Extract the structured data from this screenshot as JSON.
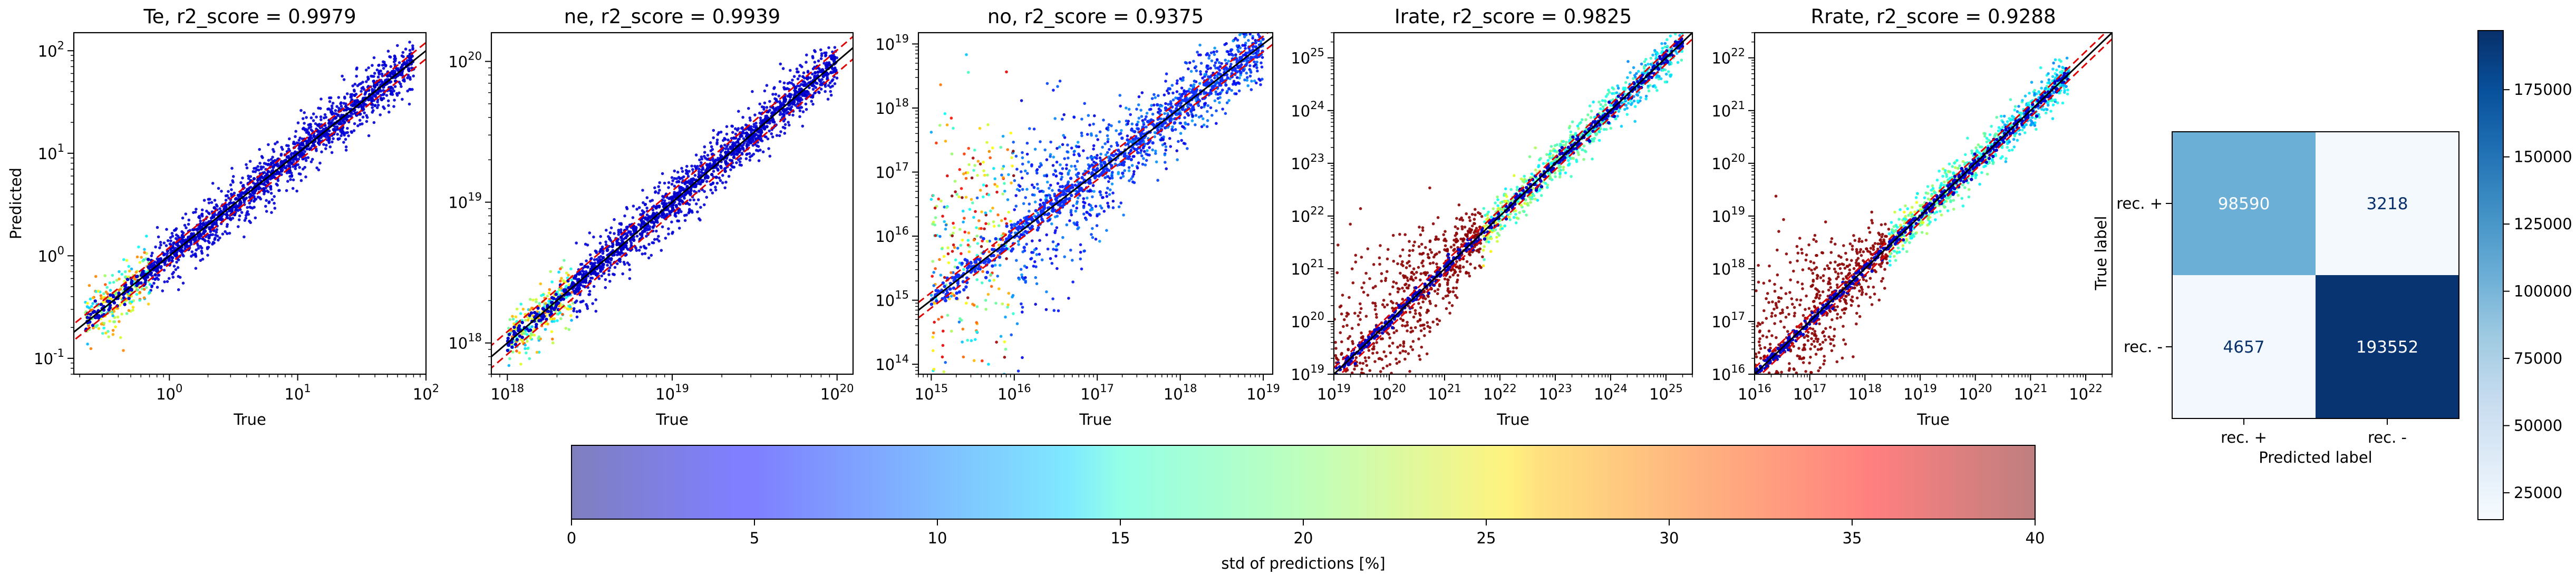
{
  "figure": {
    "bg": "#ffffff"
  },
  "chart_data": [
    {
      "type": "scatter",
      "id": "te",
      "title": "Te, r2_score = 0.9979",
      "xlabel": "True",
      "ylabel": "Predicted",
      "xscale": "log",
      "yscale": "log",
      "xlim": [
        0.18,
        100
      ],
      "ylim": [
        0.07,
        150
      ],
      "xticks": [
        {
          "exp": "0"
        },
        {
          "exp": "1"
        },
        {
          "exp": "2"
        }
      ],
      "yticks": [
        {
          "exp": "-1"
        },
        {
          "exp": "0"
        },
        {
          "exp": "1"
        },
        {
          "exp": "2"
        }
      ],
      "data_range": [
        0.22,
        80
      ],
      "diag_band": 0.14,
      "spread": 0.3,
      "outliers": 0.0,
      "color": "#0000d8"
    },
    {
      "type": "scatter",
      "id": "ne",
      "title": "ne, r2_score = 0.9939",
      "xlabel": "True",
      "ylabel": "",
      "xscale": "log",
      "yscale": "log",
      "xlim": [
        8e+17,
        1.25e+20
      ],
      "ylim": [
        6e+17,
        1.6e+20
      ],
      "xticks": [
        {
          "exp": "18"
        },
        {
          "exp": "19"
        },
        {
          "exp": "20"
        }
      ],
      "yticks": [
        {
          "exp": "18"
        },
        {
          "exp": "19"
        },
        {
          "exp": "20"
        }
      ],
      "data_range": [
        1e+18,
        1e+20
      ],
      "diag_band": 0.1,
      "spread": 0.2,
      "outliers": 0.0,
      "color": "#0000d8"
    },
    {
      "type": "scatter",
      "id": "no",
      "title": "no, r2_score = 0.9375",
      "xlabel": "True",
      "ylabel": "",
      "xscale": "log",
      "yscale": "log",
      "xlim": [
        700000000000000.0,
        1.3e+19
      ],
      "ylim": [
        70000000000000.0,
        1.5e+19
      ],
      "xticks": [
        {
          "exp": "15"
        },
        {
          "exp": "16"
        },
        {
          "exp": "17"
        },
        {
          "exp": "18"
        },
        {
          "exp": "19"
        }
      ],
      "yticks": [
        {
          "exp": "14"
        },
        {
          "exp": "15"
        },
        {
          "exp": "16"
        },
        {
          "exp": "17"
        },
        {
          "exp": "18"
        },
        {
          "exp": "19"
        }
      ],
      "data_range": [
        1000000000000000.0,
        1e+19
      ],
      "diag_band": 0.3,
      "spread": 1.2,
      "outliers": 0.0,
      "color": "#1030ff"
    },
    {
      "type": "scatter",
      "id": "irate",
      "title": "Irate, r2_score = 0.9825",
      "xlabel": "True",
      "ylabel": "",
      "xscale": "log",
      "yscale": "log",
      "xlim": [
        1e+19,
        3e+25
      ],
      "ylim": [
        1e+19,
        3e+25
      ],
      "xticks": [
        {
          "exp": "19"
        },
        {
          "exp": "20"
        },
        {
          "exp": "21"
        },
        {
          "exp": "22"
        },
        {
          "exp": "23"
        },
        {
          "exp": "24"
        },
        {
          "exp": "25"
        }
      ],
      "yticks": [
        {
          "exp": "19"
        },
        {
          "exp": "20"
        },
        {
          "exp": "21"
        },
        {
          "exp": "22"
        },
        {
          "exp": "23"
        },
        {
          "exp": "24"
        },
        {
          "exp": "25"
        }
      ],
      "data_range": [
        1e+19,
        2e+25
      ],
      "diag_band": 0.2,
      "spread": 0.9,
      "outliers": 0.0,
      "color": "#8b0000"
    },
    {
      "type": "scatter",
      "id": "rrate",
      "title": "Rrate, r2_score = 0.9288",
      "xlabel": "True",
      "ylabel": "",
      "xscale": "log",
      "yscale": "log",
      "xlim": [
        1e+16,
        3e+22
      ],
      "ylim": [
        1e+16,
        3e+22
      ],
      "xticks": [
        {
          "exp": "16"
        },
        {
          "exp": "17"
        },
        {
          "exp": "18"
        },
        {
          "exp": "19"
        },
        {
          "exp": "20"
        },
        {
          "exp": "21"
        },
        {
          "exp": "22"
        }
      ],
      "yticks": [
        {
          "exp": "16"
        },
        {
          "exp": "17"
        },
        {
          "exp": "18"
        },
        {
          "exp": "19"
        },
        {
          "exp": "20"
        },
        {
          "exp": "21"
        },
        {
          "exp": "22"
        }
      ],
      "data_range": [
        1e+16,
        5e+21
      ],
      "diag_band": 0.2,
      "spread": 0.9,
      "outliers": 0.0,
      "color": "#8b0000"
    },
    {
      "type": "heatmap",
      "id": "confusion",
      "xlabel": "Predicted label",
      "ylabel": "True label",
      "categories": [
        "rec. +",
        "rec. -"
      ],
      "values": [
        [
          98590,
          3218
        ],
        [
          4657,
          193552
        ]
      ],
      "colormap": "Blues",
      "colorbar": {
        "min": 0,
        "max": 197000,
        "ticks": [
          "25000",
          "50000",
          "75000",
          "100000",
          "125000",
          "150000",
          "175000"
        ]
      }
    },
    {
      "type": "colorbar",
      "id": "std",
      "label": "std of predictions [%]",
      "range": [
        0,
        40
      ],
      "colormap": "jet",
      "alpha": 0.5,
      "ticks": [
        "0",
        "5",
        "10",
        "15",
        "20",
        "25",
        "30",
        "35",
        "40"
      ]
    }
  ]
}
